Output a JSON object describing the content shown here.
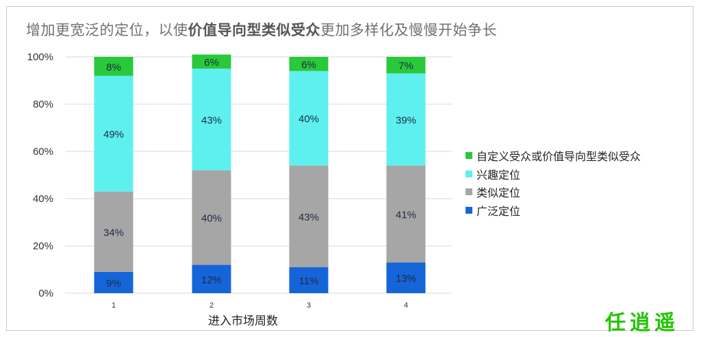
{
  "title": {
    "part1": "增加更宽泛的定位，以使",
    "part2": "价值导向型类似受众",
    "part3": "更加多样化及慢慢开始争长"
  },
  "watermark": "任逍遥",
  "chart_data": {
    "type": "bar",
    "stacked": true,
    "title": "增加更宽泛的定位，以使价值导向型类似受众更加多样化及慢慢开始争长",
    "xlabel": "进入市场周数",
    "ylabel": "",
    "categories": [
      "1",
      "2",
      "3",
      "4"
    ],
    "ylim": [
      0,
      100
    ],
    "yticks": [
      "0%",
      "20%",
      "40%",
      "60%",
      "80%",
      "100%"
    ],
    "grid": true,
    "legend_position": "right",
    "series": [
      {
        "name": "广泛定位",
        "color": "#1565d8",
        "values": [
          9,
          12,
          11,
          13
        ],
        "labels": [
          "9%",
          "12%",
          "11%",
          "13%"
        ]
      },
      {
        "name": "类似定位",
        "color": "#a6a6a6",
        "values": [
          34,
          40,
          43,
          41
        ],
        "labels": [
          "34%",
          "40%",
          "43%",
          "41%"
        ]
      },
      {
        "name": "兴趣定位",
        "color": "#5ef0ef",
        "values": [
          49,
          43,
          40,
          39
        ],
        "labels": [
          "49%",
          "43%",
          "40%",
          "39%"
        ]
      },
      {
        "name": "自定义受众或价值导向型类似受众",
        "color": "#29c93a",
        "values": [
          8,
          6,
          6,
          7
        ],
        "labels": [
          "8%",
          "6%",
          "6%",
          "7%"
        ]
      }
    ]
  }
}
